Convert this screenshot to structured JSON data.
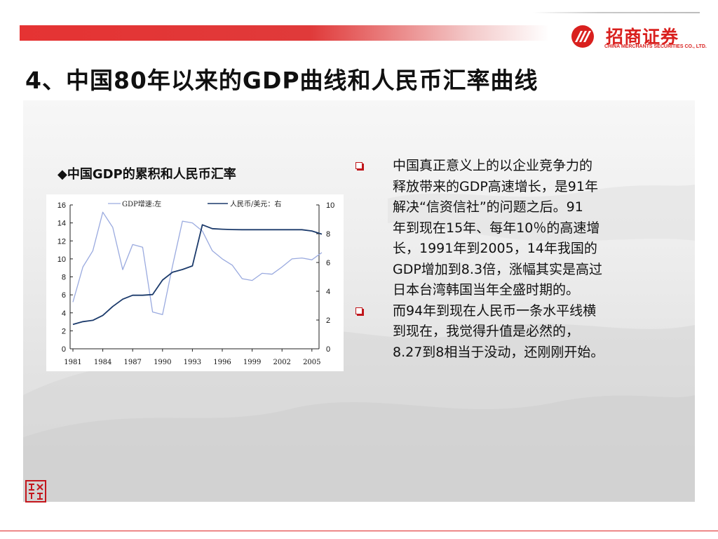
{
  "header": {
    "logo_cn": "招商证券",
    "logo_en": "CHINA MERCHANTS SECURITIES CO., LTD.",
    "title": "4、中国80年以来的GDP曲线和人民币汇率曲线",
    "brand_color": "#d9201e"
  },
  "chart_title": "◆中国GDP的累积和人民币汇率",
  "chart_data": {
    "type": "line",
    "x": [
      1981,
      1982,
      1983,
      1984,
      1985,
      1986,
      1987,
      1988,
      1989,
      1990,
      1991,
      1992,
      1993,
      1994,
      1995,
      1996,
      1997,
      1998,
      1999,
      2000,
      2001,
      2002,
      2003,
      2004,
      2005,
      2006
    ],
    "x_ticks": [
      "1981",
      "1984",
      "1987",
      "1990",
      "1993",
      "1996",
      "1999",
      "2002",
      "2005"
    ],
    "left_ticks": [
      "0",
      "2",
      "4",
      "6",
      "8",
      "10",
      "12",
      "14",
      "16"
    ],
    "right_ticks": [
      "0",
      "2",
      "4",
      "6",
      "8",
      "10"
    ],
    "ylim_left": [
      0,
      16
    ],
    "ylim_right": [
      0,
      10
    ],
    "series": [
      {
        "name": "GDP增速:左",
        "axis": "left",
        "color": "#9aaadf",
        "values": [
          5.2,
          9.1,
          10.9,
          15.2,
          13.5,
          8.8,
          11.6,
          11.3,
          4.1,
          3.8,
          9.2,
          14.2,
          14.0,
          13.1,
          10.9,
          10.0,
          9.3,
          7.8,
          7.6,
          8.4,
          8.3,
          9.1,
          10.0,
          10.1,
          9.9,
          10.7
        ]
      },
      {
        "name": "人民币/美元：右",
        "axis": "right",
        "color": "#1b3a6b",
        "values": [
          1.7,
          1.89,
          1.98,
          2.32,
          2.94,
          3.45,
          3.72,
          3.72,
          3.77,
          4.78,
          5.32,
          5.51,
          5.76,
          8.62,
          8.35,
          8.31,
          8.29,
          8.28,
          8.28,
          8.28,
          8.28,
          8.28,
          8.28,
          8.28,
          8.19,
          7.97
        ]
      }
    ],
    "grid": false,
    "legend_position": "top"
  },
  "bullets": [
    {
      "lines": [
        "中国真正意义上的以企业竞争力的",
        "释放带来的GDP高速增长，是91年",
        "解决“信资信社”的问题之后。91",
        "年到现在15年、每年10％的高速增",
        "长，1991年到2005，14年我国的",
        "GDP增加到8.3倍，涨幅其实是高过",
        "日本台湾韩国当年全盛时期的。"
      ]
    },
    {
      "lines": [
        "而94年到现在人民币一条水平线横",
        "到现在，我觉得升值是必然的，",
        "8.27到8相当于没动，还刚刚开始。"
      ]
    }
  ],
  "stamp_text": "致行远"
}
